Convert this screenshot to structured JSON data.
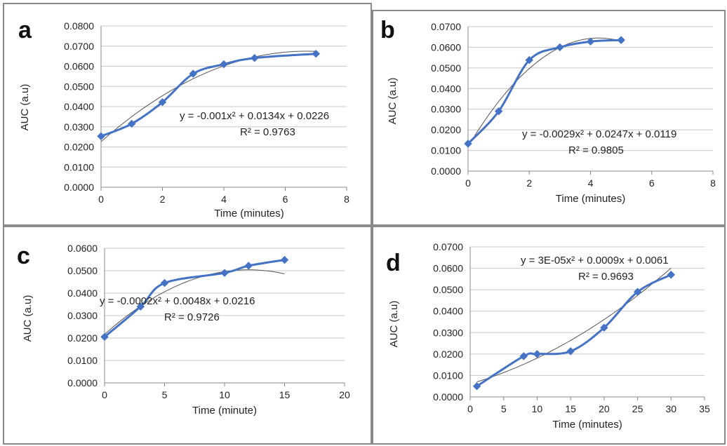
{
  "accent_color": "#4472c4",
  "trend_color": "#555555",
  "grid_color": "#c8c8c8",
  "chart_data": [
    {
      "type": "line",
      "letter": "a",
      "xlabel": "Time (minutes)",
      "ylabel": "AUC (a.u)",
      "xlim": [
        0,
        8
      ],
      "xticks": [
        0,
        2,
        4,
        6,
        8
      ],
      "ylim": [
        0,
        0.08
      ],
      "ystep": 0.01,
      "yticks": [
        "0.0000",
        "0.0100",
        "0.0200",
        "0.0300",
        "0.0400",
        "0.0500",
        "0.0600",
        "0.0700",
        "0.0800"
      ],
      "grid": true,
      "series": [
        {
          "x": [
            0,
            1,
            2,
            3,
            4,
            5,
            7
          ],
          "y": [
            0.0253,
            0.0315,
            0.0422,
            0.0563,
            0.061,
            0.0641,
            0.0662
          ]
        }
      ],
      "trendline": {
        "a": -0.001,
        "b": 0.0134,
        "c": 0.0226
      },
      "equation": "y = -0.001x² + 0.0134x + 0.0226",
      "r2": "R² = 0.9763"
    },
    {
      "type": "line",
      "letter": "b",
      "xlabel": "Time (minutes)",
      "ylabel": "AUC (a.u)",
      "xlim": [
        0,
        8
      ],
      "xticks": [
        0,
        2,
        4,
        6,
        8
      ],
      "ylim": [
        0,
        0.07
      ],
      "ystep": 0.01,
      "yticks": [
        "0.0000",
        "0.0100",
        "0.0200",
        "0.0300",
        "0.0400",
        "0.0500",
        "0.0600",
        "0.0700"
      ],
      "grid": true,
      "series": [
        {
          "x": [
            0,
            1,
            2,
            3,
            4,
            5
          ],
          "y": [
            0.0133,
            0.029,
            0.0538,
            0.06,
            0.0628,
            0.0635
          ]
        }
      ],
      "trendline": {
        "a": -0.0029,
        "b": 0.0247,
        "c": 0.0119
      },
      "equation": "y = -0.0029x² + 0.0247x + 0.0119",
      "r2": "R² = 0.9805"
    },
    {
      "type": "line",
      "letter": "c",
      "xlabel": "Time (minute)",
      "ylabel": "AUC (a.u)",
      "xlim": [
        0,
        20
      ],
      "xticks": [
        0,
        5,
        10,
        15,
        20
      ],
      "ylim": [
        0,
        0.06
      ],
      "ystep": 0.01,
      "yticks": [
        "0.0000",
        "0.0100",
        "0.0200",
        "0.0300",
        "0.0400",
        "0.0500",
        "0.0600"
      ],
      "grid": true,
      "series": [
        {
          "x": [
            0,
            3,
            5,
            10,
            12,
            15
          ],
          "y": [
            0.0205,
            0.034,
            0.0445,
            0.049,
            0.0522,
            0.0548
          ]
        }
      ],
      "trendline": {
        "a": -0.0002,
        "b": 0.0048,
        "c": 0.0216
      },
      "equation": "y = -0.0002x² + 0.0048x + 0.0216",
      "r2": "R² = 0.9726"
    },
    {
      "type": "line",
      "letter": "d",
      "xlabel": "Time (minutes)",
      "ylabel": "AUC (a.u)",
      "xlim": [
        0,
        35
      ],
      "xticks": [
        0,
        5,
        10,
        15,
        20,
        25,
        30,
        35
      ],
      "ylim": [
        0,
        0.07
      ],
      "ystep": 0.01,
      "yticks": [
        "0.0000",
        "0.0100",
        "0.0200",
        "0.0300",
        "0.0400",
        "0.0500",
        "0.0600",
        "0.0700"
      ],
      "grid": true,
      "series": [
        {
          "x": [
            1,
            8,
            10,
            15,
            20,
            25,
            30
          ],
          "y": [
            0.005,
            0.019,
            0.02,
            0.0213,
            0.0323,
            0.049,
            0.057
          ]
        }
      ],
      "trendline": {
        "a": 3e-05,
        "b": 0.0009,
        "c": 0.0061
      },
      "equation": "y = 3E-05x² + 0.0009x + 0.0061",
      "r2": "R² = 0.9693"
    }
  ]
}
